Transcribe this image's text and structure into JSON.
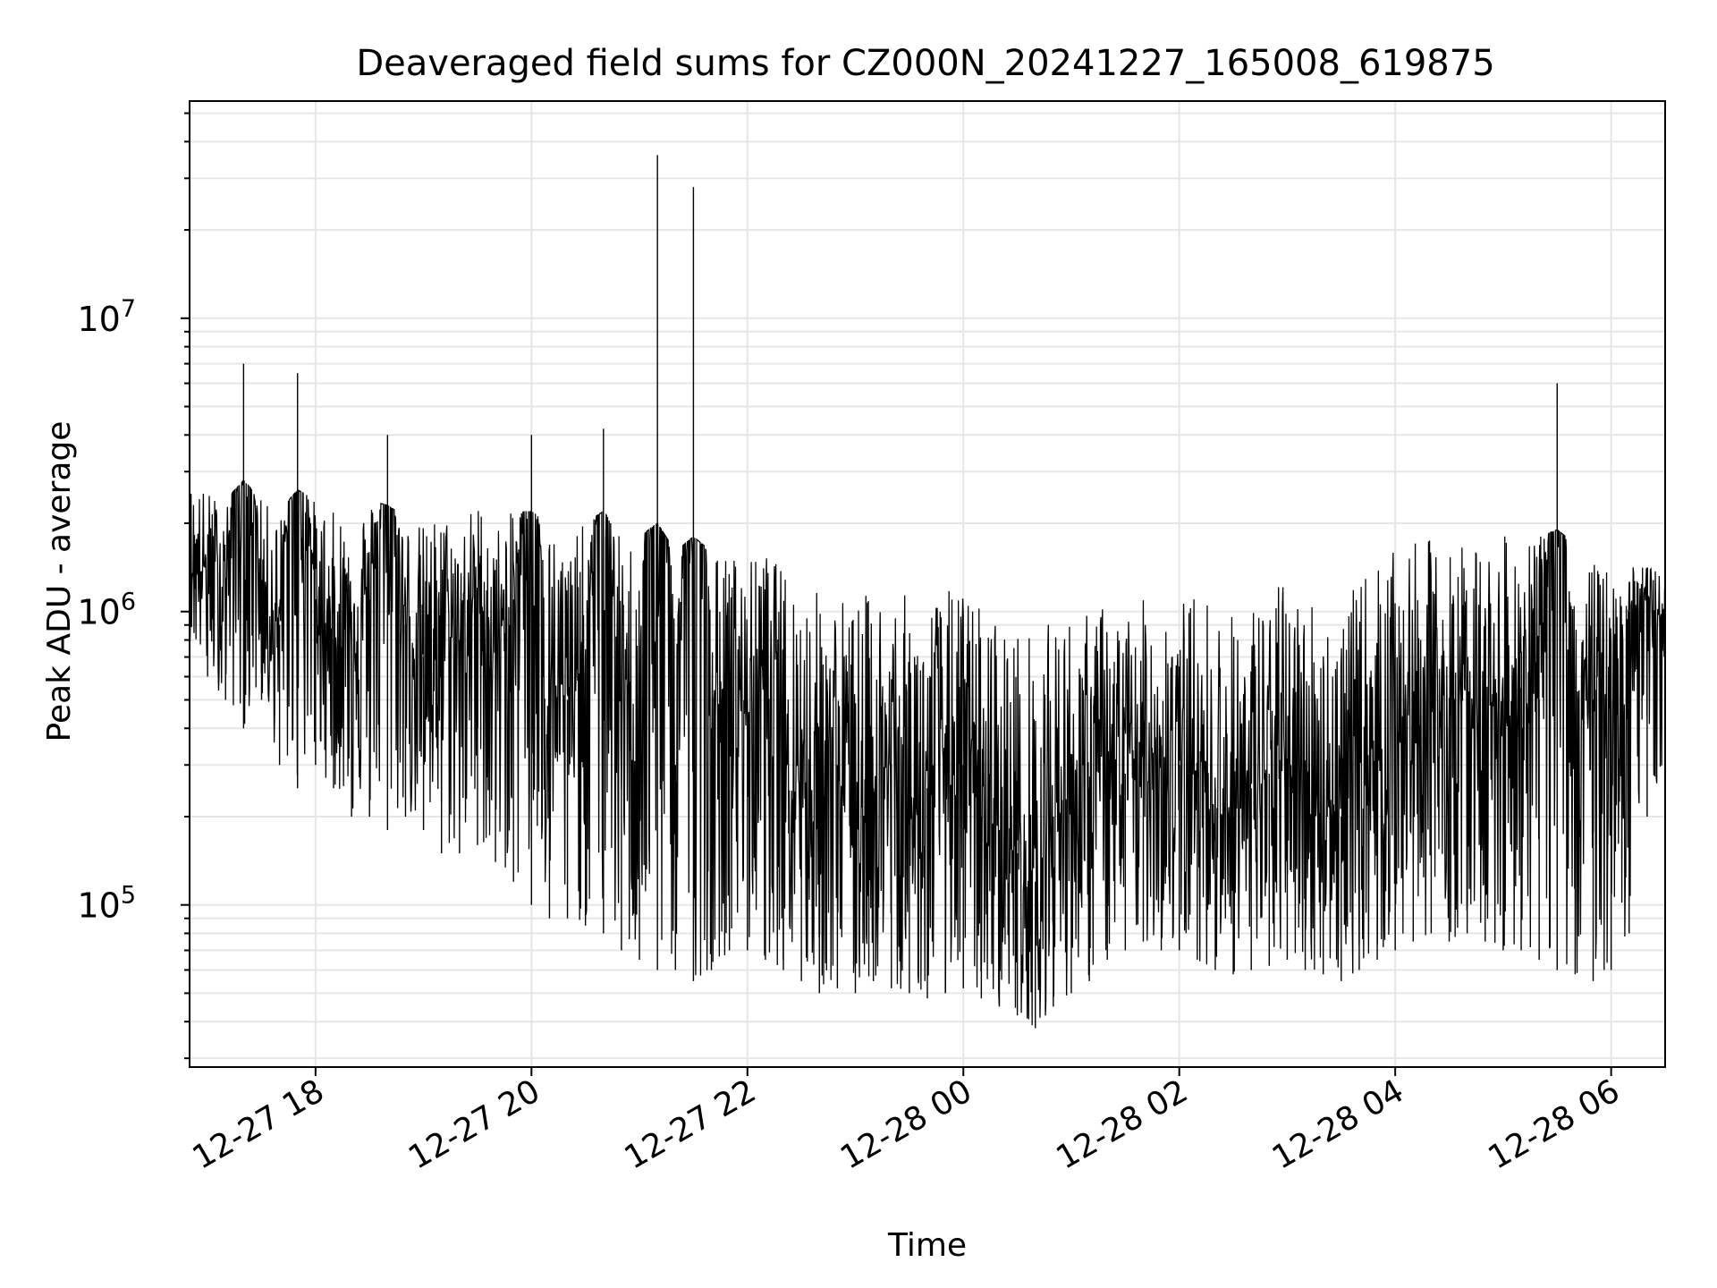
{
  "chart_data": {
    "type": "line",
    "title": "Deaveraged field sums for CZ000N_20241227_165008_619875",
    "xlabel": "Time",
    "ylabel": "Peak ADU - average",
    "x_axis": {
      "kind": "datetime",
      "min": "2024-12-27T16:50",
      "max": "2024-12-28T06:30",
      "ticks": [
        {
          "t": "2024-12-27T18:00",
          "label": "12-27 18"
        },
        {
          "t": "2024-12-27T20:00",
          "label": "12-27 20"
        },
        {
          "t": "2024-12-27T22:00",
          "label": "12-27 22"
        },
        {
          "t": "2024-12-28T00:00",
          "label": "12-28 00"
        },
        {
          "t": "2024-12-28T02:00",
          "label": "12-28 02"
        },
        {
          "t": "2024-12-28T04:00",
          "label": "12-28 04"
        },
        {
          "t": "2024-12-28T06:00",
          "label": "12-28 06"
        }
      ],
      "tick_label_rotation_deg": 30
    },
    "y_axis": {
      "scale": "log",
      "ylim": [
        28000,
        55000000
      ],
      "major_ticks": [
        {
          "value": 100000,
          "base": "10",
          "exp": "5"
        },
        {
          "value": 1000000,
          "base": "10",
          "exp": "6"
        },
        {
          "value": 10000000,
          "base": "10",
          "exp": "7"
        }
      ]
    },
    "grid": true,
    "line_color": "#000000",
    "grid_color": "#e6e6e6",
    "series": [
      {
        "x": [
          "2024-12-27T16:50",
          "2024-12-27T17:00",
          "2024-12-27T17:10",
          "2024-12-27T17:20",
          "2024-12-27T17:30",
          "2024-12-27T17:40",
          "2024-12-27T17:50",
          "2024-12-27T18:00",
          "2024-12-27T18:10",
          "2024-12-27T18:20",
          "2024-12-27T18:30",
          "2024-12-27T18:40",
          "2024-12-27T18:50",
          "2024-12-27T19:00",
          "2024-12-27T19:10",
          "2024-12-27T19:20",
          "2024-12-27T19:30",
          "2024-12-27T19:40",
          "2024-12-27T19:50",
          "2024-12-27T20:00",
          "2024-12-27T20:10",
          "2024-12-27T20:20",
          "2024-12-27T20:30",
          "2024-12-27T20:40",
          "2024-12-27T20:50",
          "2024-12-27T21:00",
          "2024-12-27T21:10",
          "2024-12-27T21:20",
          "2024-12-27T21:30",
          "2024-12-27T21:40",
          "2024-12-27T21:50",
          "2024-12-27T22:00",
          "2024-12-27T22:10",
          "2024-12-27T22:20",
          "2024-12-27T22:30",
          "2024-12-27T22:40",
          "2024-12-27T22:50",
          "2024-12-27T23:00",
          "2024-12-27T23:10",
          "2024-12-27T23:20",
          "2024-12-27T23:30",
          "2024-12-27T23:40",
          "2024-12-27T23:50",
          "2024-12-28T00:00",
          "2024-12-28T00:10",
          "2024-12-28T00:20",
          "2024-12-28T00:30",
          "2024-12-28T00:40",
          "2024-12-28T00:50",
          "2024-12-28T01:00",
          "2024-12-28T01:10",
          "2024-12-28T01:20",
          "2024-12-28T01:30",
          "2024-12-28T01:40",
          "2024-12-28T01:50",
          "2024-12-28T02:00",
          "2024-12-28T02:10",
          "2024-12-28T02:20",
          "2024-12-28T02:30",
          "2024-12-28T02:40",
          "2024-12-28T02:50",
          "2024-12-28T03:00",
          "2024-12-28T03:10",
          "2024-12-28T03:20",
          "2024-12-28T03:30",
          "2024-12-28T03:40",
          "2024-12-28T03:50",
          "2024-12-28T04:00",
          "2024-12-28T04:10",
          "2024-12-28T04:20",
          "2024-12-28T04:30",
          "2024-12-28T04:40",
          "2024-12-28T04:50",
          "2024-12-28T05:00",
          "2024-12-28T05:10",
          "2024-12-28T05:20",
          "2024-12-28T05:30",
          "2024-12-28T05:40",
          "2024-12-28T05:50",
          "2024-12-28T06:00",
          "2024-12-28T06:10",
          "2024-12-28T06:20",
          "2024-12-28T06:30"
        ],
        "y": [
          1500000,
          1400000,
          1300000,
          7000000,
          1200000,
          900000,
          6500000,
          1100000,
          800000,
          1000000,
          1100000,
          4000000,
          900000,
          700000,
          1000000,
          800000,
          1200000,
          700000,
          1100000,
          4000000,
          600000,
          500000,
          700000,
          4200000,
          400000,
          500000,
          36000000,
          300000,
          28000000,
          400000,
          600000,
          500000,
          700000,
          500000,
          300000,
          250000,
          300000,
          200000,
          250000,
          300000,
          200000,
          250000,
          350000,
          300000,
          200000,
          180000,
          150000,
          120000,
          200000,
          250000,
          250000,
          300000,
          280000,
          320000,
          350000,
          300000,
          280000,
          250000,
          200000,
          250000,
          280000,
          300000,
          280000,
          250000,
          200000,
          300000,
          350000,
          400000,
          450000,
          500000,
          400000,
          600000,
          450000,
          500000,
          550000,
          500000,
          6000000,
          450000,
          500000,
          500000,
          1000000,
          1100000,
          900000
        ],
        "envelope_upper": [
          2800000,
          2600000,
          2400000,
          2800000,
          2400000,
          2200000,
          2600000,
          2400000,
          2200000,
          2300000,
          2400000,
          2300000,
          2100000,
          2000000,
          2200000,
          2000000,
          2400000,
          2000000,
          2200000,
          2200000,
          2000000,
          1800000,
          2000000,
          2200000,
          1800000,
          1800000,
          2000000,
          1600000,
          1800000,
          1600000,
          1600000,
          1500000,
          1600000,
          1400000,
          1300000,
          1200000,
          1200000,
          1100000,
          1200000,
          1300000,
          1100000,
          1100000,
          1200000,
          1200000,
          1100000,
          1000000,
          900000,
          850000,
          950000,
          1000000,
          1000000,
          1100000,
          1000000,
          1100000,
          1200000,
          1100000,
          1200000,
          1100000,
          1000000,
          1100000,
          1200000,
          1300000,
          1200000,
          1100000,
          1000000,
          1300000,
          1500000,
          1600000,
          1700000,
          1800000,
          1600000,
          1900000,
          1700000,
          1800000,
          1900000,
          1800000,
          1900000,
          1700000,
          1500000,
          1400000,
          1400000,
          1500000,
          1300000
        ],
        "envelope_lower": [
          800000,
          600000,
          500000,
          400000,
          500000,
          300000,
          250000,
          300000,
          250000,
          200000,
          200000,
          180000,
          200000,
          180000,
          150000,
          150000,
          160000,
          140000,
          120000,
          100000,
          90000,
          90000,
          85000,
          80000,
          70000,
          65000,
          60000,
          60000,
          55000,
          60000,
          70000,
          70000,
          65000,
          60000,
          55000,
          50000,
          52000,
          50000,
          55000,
          52000,
          50000,
          48000,
          50000,
          52000,
          48000,
          45000,
          42000,
          38000,
          45000,
          50000,
          55000,
          65000,
          70000,
          75000,
          70000,
          70000,
          65000,
          60000,
          58000,
          60000,
          62000,
          65000,
          60000,
          58000,
          55000,
          60000,
          65000,
          70000,
          75000,
          80000,
          75000,
          80000,
          75000,
          70000,
          70000,
          65000,
          60000,
          58000,
          55000,
          60000,
          80000,
          200000,
          300000
        ]
      }
    ]
  }
}
